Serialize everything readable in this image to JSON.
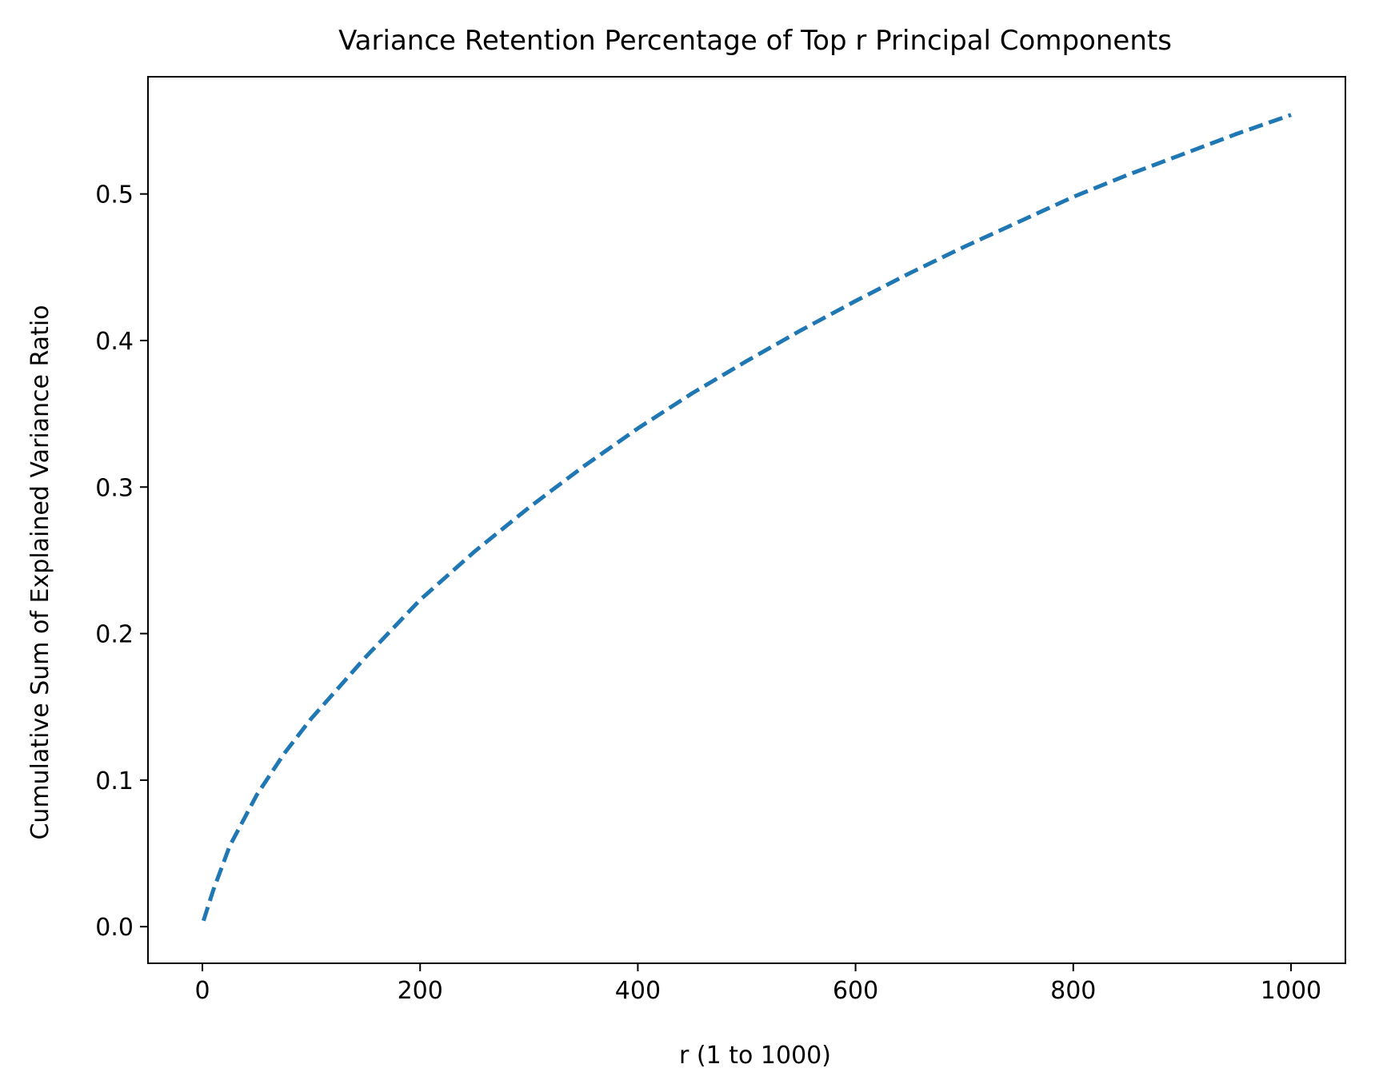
{
  "chart_data": {
    "type": "line",
    "title": "Variance Retention Percentage of Top r Principal Components",
    "xlabel": "r (1 to 1000)",
    "ylabel": "Cumulative Sum of Explained Variance Ratio",
    "xlim": [
      -50,
      1050
    ],
    "ylim": [
      -0.025,
      0.58
    ],
    "x_ticks": [
      0,
      200,
      400,
      600,
      800,
      1000
    ],
    "x_tick_labels": [
      "0",
      "200",
      "400",
      "600",
      "800",
      "1000"
    ],
    "y_ticks": [
      0.0,
      0.1,
      0.2,
      0.3,
      0.4,
      0.5
    ],
    "y_tick_labels": [
      "0.0",
      "0.1",
      "0.2",
      "0.3",
      "0.4",
      "0.5"
    ],
    "grid": false,
    "series": [
      {
        "line_style": "dashed",
        "color": "#1f77b4",
        "x": [
          1,
          10,
          25,
          50,
          75,
          100,
          150,
          200,
          250,
          300,
          350,
          400,
          450,
          500,
          550,
          600,
          650,
          700,
          750,
          800,
          850,
          900,
          950,
          1000
        ],
        "y": [
          0.004,
          0.025,
          0.055,
          0.09,
          0.118,
          0.142,
          0.184,
          0.223,
          0.256,
          0.286,
          0.314,
          0.34,
          0.364,
          0.386,
          0.407,
          0.427,
          0.446,
          0.464,
          0.481,
          0.498,
          0.513,
          0.527,
          0.541,
          0.554
        ]
      }
    ]
  }
}
